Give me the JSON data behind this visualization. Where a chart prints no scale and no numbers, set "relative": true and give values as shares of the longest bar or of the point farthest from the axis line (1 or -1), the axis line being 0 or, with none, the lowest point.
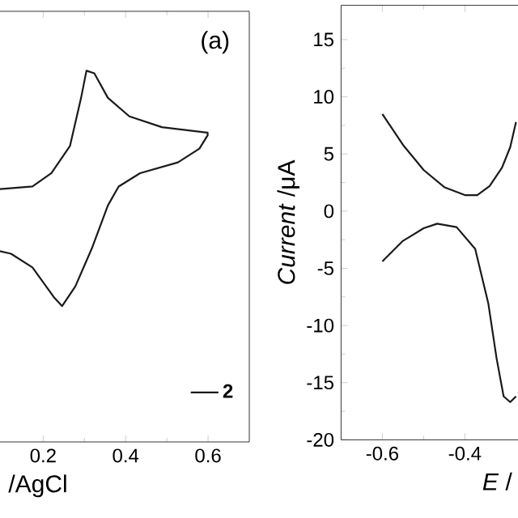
{
  "chart_data": [
    {
      "type": "line",
      "xlabel": "/AgCl",
      "relative": true,
      "xlim": [
        0.09,
        0.7
      ],
      "xticks": [
        0.2,
        0.4,
        0.6
      ],
      "legend": "bottom right",
      "annotations": [
        "(a)"
      ],
      "series": [
        {
          "name": "2",
          "color": "#1a1a1a",
          "x": [
            0.095,
            0.174,
            0.22,
            0.265,
            0.292,
            0.305,
            0.324,
            0.357,
            0.409,
            0.488,
            0.599,
            0.599,
            0.579,
            0.527,
            0.435,
            0.383,
            0.357,
            0.318,
            0.278,
            0.246,
            0.226,
            0.174,
            0.122,
            0.095
          ],
          "values": [
            0.681,
            0.688,
            0.724,
            0.797,
            0.927,
            1.0,
            0.993,
            0.927,
            0.877,
            0.848,
            0.833,
            0.826,
            0.79,
            0.753,
            0.724,
            0.688,
            0.637,
            0.521,
            0.419,
            0.366,
            0.39,
            0.47,
            0.507,
            0.514
          ]
        }
      ]
    },
    {
      "type": "line",
      "xlabel": "*E* /",
      "ylabel": "*Current* /μA",
      "xlim": [
        -0.7,
        -0.27
      ],
      "xticks": [
        -0.6,
        -0.4
      ],
      "ylim": [
        -20,
        18
      ],
      "yticks": [
        -20,
        -15,
        -10,
        -5,
        0,
        5,
        10,
        15
      ],
      "series": [
        {
          "color": "#1a1a1a",
          "x": [
            -0.6,
            -0.55,
            -0.5,
            -0.45,
            -0.4,
            -0.37,
            -0.34,
            -0.31,
            -0.29,
            -0.276
          ],
          "values": [
            8.5,
            5.8,
            3.6,
            2.1,
            1.4,
            1.4,
            2.2,
            3.8,
            5.6,
            7.8
          ]
        },
        {
          "color": "#1a1a1a",
          "x": [
            -0.6,
            -0.55,
            -0.5,
            -0.467,
            -0.42,
            -0.375,
            -0.343,
            -0.323,
            -0.306,
            -0.29,
            -0.276
          ],
          "values": [
            -4.4,
            -2.6,
            -1.5,
            -1.1,
            -1.4,
            -3.3,
            -8.1,
            -12.9,
            -16.2,
            -16.7,
            -16.2
          ]
        }
      ]
    }
  ]
}
